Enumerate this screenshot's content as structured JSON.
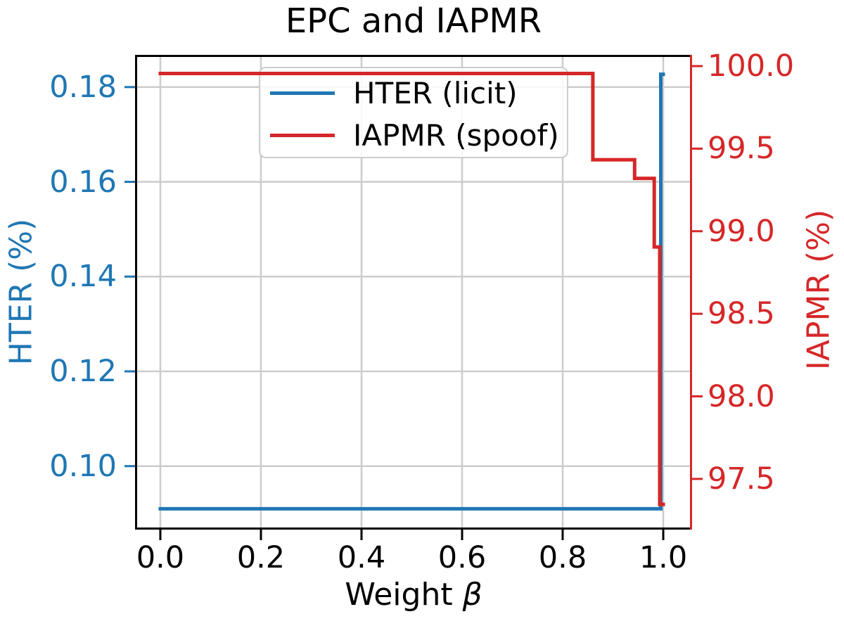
{
  "chart_data": {
    "type": "line",
    "title": "EPC and IAPMR",
    "xlabel": "Weight β",
    "xlabel_parts": [
      "Weight ",
      "β"
    ],
    "xlim": [
      -0.0503,
      1.0573
    ],
    "grid": true,
    "x_ticks": {
      "values": [
        0.0,
        0.2,
        0.4,
        0.6,
        0.8,
        1.0
      ],
      "labels": [
        "0.0",
        "0.2",
        "0.4",
        "0.6",
        "0.8",
        "1.0"
      ]
    },
    "left_axis": {
      "label": "HTER (%)",
      "color": "#1f77b4",
      "lim": [
        0.0866,
        0.1868
      ],
      "ticks": {
        "values": [
          0.1,
          0.12,
          0.14,
          0.16,
          0.18
        ],
        "labels": [
          "0.10",
          "0.12",
          "0.14",
          "0.16",
          "0.18"
        ]
      }
    },
    "right_axis": {
      "label": "IAPMR (%)",
      "color": "#d62728",
      "lim": [
        97.193,
        100.068
      ],
      "ticks": {
        "values": [
          97.5,
          98.0,
          98.5,
          99.0,
          99.5,
          100.0
        ],
        "labels": [
          "97.5",
          "98.0",
          "98.5",
          "99.0",
          "99.5",
          "100.0"
        ]
      }
    },
    "colors": {
      "grid": "#cccccc",
      "spine": "#000000",
      "hter": "#1f77b4",
      "iapmr": "#d62728"
    },
    "legend": {
      "position": "upper left",
      "items": [
        "HTER (licit)",
        "IAPMR (spoof)"
      ]
    },
    "series": [
      {
        "name": "HTER (licit)",
        "axis": "left",
        "color": "#1f77b4",
        "points": [
          [
            0.0,
            0.091
          ],
          [
            0.995,
            0.091
          ],
          [
            0.995,
            0.1827
          ],
          [
            1.0,
            0.1827
          ]
        ]
      },
      {
        "name": "IAPMR (spoof)",
        "axis": "right",
        "color": "#d62728",
        "points": [
          [
            0.0,
            99.955
          ],
          [
            0.86,
            99.955
          ],
          [
            0.86,
            99.433
          ],
          [
            0.943,
            99.433
          ],
          [
            0.943,
            99.32
          ],
          [
            0.982,
            99.32
          ],
          [
            0.982,
            98.905
          ],
          [
            0.993,
            98.905
          ],
          [
            0.993,
            97.346
          ],
          [
            1.0,
            97.346
          ]
        ]
      }
    ]
  }
}
